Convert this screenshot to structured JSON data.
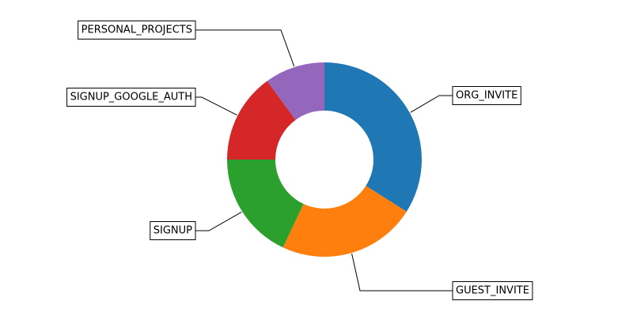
{
  "chart_data": {
    "type": "pie",
    "donut": true,
    "start_angle_deg": 90,
    "direction": "clockwise",
    "slices": [
      {
        "label": "ORG_INVITE",
        "value": 34,
        "color": "#1f77b4"
      },
      {
        "label": "GUEST_INVITE",
        "value": 23,
        "color": "#ff7f0e"
      },
      {
        "label": "SIGNUP",
        "value": 18,
        "color": "#2ca02c"
      },
      {
        "label": "SIGNUP_GOOGLE_AUTH",
        "value": 15,
        "color": "#d62728"
      },
      {
        "label": "PERSONAL_PROJECTS",
        "value": 10,
        "color": "#9467bd"
      }
    ]
  }
}
